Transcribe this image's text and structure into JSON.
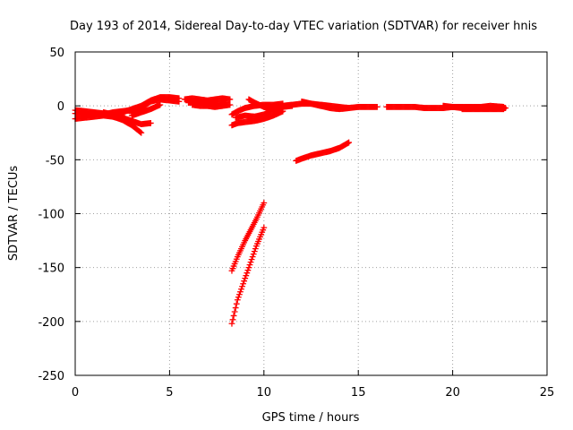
{
  "chart_data": {
    "type": "scatter",
    "title": "Day 193 of 2014, Sidereal Day-to-day VTEC variation (SDTVAR) for receiver hnis",
    "xlabel": "GPS time / hours",
    "ylabel": "SDTVAR / TECUs",
    "xlim": [
      0,
      25
    ],
    "ylim": [
      -250,
      50
    ],
    "xticks": [
      "0",
      "5",
      "10",
      "15",
      "20",
      "25"
    ],
    "yticks": [
      "50",
      "0",
      "-50",
      "-100",
      "-150",
      "-200",
      "-250"
    ],
    "xtick_values": [
      0,
      5,
      10,
      15,
      20,
      25
    ],
    "ytick_values": [
      50,
      0,
      -50,
      -100,
      -150,
      -200,
      -250
    ],
    "grid": true,
    "marker_color": "#ff0000",
    "series": [
      {
        "points": [
          [
            0,
            -12
          ],
          [
            0.5,
            -11
          ],
          [
            1,
            -10
          ],
          [
            1.5,
            -9
          ],
          [
            2,
            -10
          ],
          [
            2.5,
            -12
          ],
          [
            3,
            -14
          ]
        ]
      },
      {
        "points": [
          [
            0,
            -7
          ],
          [
            0.5,
            -8
          ],
          [
            1,
            -7
          ],
          [
            1.5,
            -8
          ],
          [
            2,
            -6
          ],
          [
            2.5,
            -5
          ],
          [
            3,
            -4
          ],
          [
            3.5,
            -3
          ]
        ]
      },
      {
        "points": [
          [
            0,
            -4
          ],
          [
            0.5,
            -5
          ],
          [
            1,
            -6
          ],
          [
            1.5,
            -7
          ],
          [
            2,
            -8
          ],
          [
            2.5,
            -9
          ]
        ]
      },
      {
        "points": [
          [
            1.5,
            -6
          ],
          [
            2,
            -8
          ],
          [
            2.5,
            -11
          ],
          [
            3,
            -14
          ],
          [
            3.5,
            -17
          ],
          [
            4,
            -16
          ]
        ]
      },
      {
        "points": [
          [
            2,
            -10
          ],
          [
            2.5,
            -13
          ],
          [
            3,
            -18
          ],
          [
            3.5,
            -25
          ]
        ]
      },
      {
        "points": [
          [
            2.5,
            -6
          ],
          [
            3,
            -3
          ],
          [
            3.5,
            0
          ],
          [
            4,
            5
          ],
          [
            4.5,
            8
          ],
          [
            5,
            8
          ],
          [
            5.5,
            7
          ]
        ]
      },
      {
        "points": [
          [
            3,
            -7
          ],
          [
            3.5,
            -2
          ],
          [
            4,
            4
          ],
          [
            4.5,
            6
          ],
          [
            5,
            5
          ],
          [
            5.5,
            4
          ]
        ]
      },
      {
        "points": [
          [
            3,
            -9
          ],
          [
            3.5,
            -6
          ],
          [
            4,
            -3
          ],
          [
            4.5,
            1
          ]
        ]
      },
      {
        "points": [
          [
            5.8,
            6
          ],
          [
            6.2,
            7
          ],
          [
            6.6,
            6
          ],
          [
            7,
            5
          ],
          [
            7.4,
            6
          ],
          [
            7.8,
            7
          ],
          [
            8.2,
            6
          ]
        ]
      },
      {
        "points": [
          [
            6,
            3
          ],
          [
            6.5,
            4
          ],
          [
            7,
            3
          ],
          [
            7.5,
            2
          ],
          [
            8,
            3
          ]
        ]
      },
      {
        "points": [
          [
            6.2,
            1
          ],
          [
            6.6,
            0
          ],
          [
            7,
            0
          ],
          [
            7.4,
            -1
          ],
          [
            7.8,
            0
          ],
          [
            8.2,
            1
          ]
        ]
      },
      {
        "points": [
          [
            8.3,
            -8
          ],
          [
            8.6,
            -5
          ],
          [
            9,
            -2
          ],
          [
            9.5,
            0
          ],
          [
            10,
            1
          ],
          [
            10.5,
            1
          ],
          [
            11,
            2
          ]
        ]
      },
      {
        "points": [
          [
            8.3,
            -18
          ],
          [
            8.6,
            -16
          ],
          [
            9,
            -15
          ],
          [
            9.5,
            -14
          ],
          [
            10,
            -12
          ],
          [
            10.5,
            -9
          ],
          [
            11,
            -5
          ]
        ]
      },
      {
        "points": [
          [
            8.5,
            -11
          ],
          [
            9,
            -9
          ],
          [
            9.5,
            -10
          ],
          [
            10,
            -8
          ],
          [
            10.5,
            -4
          ],
          [
            11,
            -2
          ]
        ]
      },
      {
        "points": [
          [
            9.2,
            6
          ],
          [
            9.5,
            3
          ],
          [
            10,
            -1
          ],
          [
            10.5,
            -3
          ],
          [
            11,
            -1
          ],
          [
            11.5,
            0
          ]
        ]
      },
      {
        "points": [
          [
            11,
            0
          ],
          [
            11.5,
            1
          ],
          [
            12,
            2
          ],
          [
            12.5,
            2
          ],
          [
            13,
            1
          ],
          [
            13.5,
            0
          ],
          [
            14,
            -1
          ],
          [
            14.5,
            -2
          ],
          [
            15,
            -1
          ],
          [
            15.5,
            -1
          ],
          [
            16,
            -1
          ]
        ]
      },
      {
        "points": [
          [
            12,
            4
          ],
          [
            12.5,
            2
          ],
          [
            13,
            0
          ],
          [
            13.5,
            -2
          ],
          [
            14,
            -3
          ],
          [
            14.5,
            -2
          ]
        ]
      },
      {
        "points": [
          [
            11.7,
            -51
          ],
          [
            12,
            -49
          ],
          [
            12.5,
            -46
          ],
          [
            13,
            -44
          ],
          [
            13.5,
            -42
          ],
          [
            14,
            -39
          ],
          [
            14.5,
            -34
          ]
        ]
      },
      {
        "points": [
          [
            8.3,
            -153
          ],
          [
            8.6,
            -140
          ],
          [
            9,
            -125
          ],
          [
            9.3,
            -115
          ],
          [
            9.6,
            -105
          ],
          [
            10,
            -90
          ]
        ]
      },
      {
        "points": [
          [
            8.3,
            -202
          ],
          [
            8.6,
            -180
          ],
          [
            9,
            -160
          ],
          [
            9.3,
            -145
          ],
          [
            9.6,
            -130
          ],
          [
            10,
            -113
          ]
        ]
      },
      {
        "points": [
          [
            16.5,
            -1
          ],
          [
            17,
            -1
          ],
          [
            17.5,
            -1
          ],
          [
            18,
            -1
          ],
          [
            18.5,
            -2
          ],
          [
            19,
            -2
          ],
          [
            19.5,
            -2
          ],
          [
            20,
            -1
          ],
          [
            20.5,
            -2
          ],
          [
            21,
            -2
          ],
          [
            21.5,
            -2
          ],
          [
            22,
            -2
          ],
          [
            22.5,
            -2
          ],
          [
            22.8,
            -2
          ]
        ]
      },
      {
        "points": [
          [
            19.5,
            0
          ],
          [
            20,
            -1
          ],
          [
            20.5,
            -1
          ],
          [
            21,
            -1
          ],
          [
            21.5,
            -1
          ],
          [
            22,
            0
          ],
          [
            22.7,
            -1
          ]
        ]
      },
      {
        "points": [
          [
            20.5,
            -3
          ],
          [
            21,
            -3
          ],
          [
            21.5,
            -3
          ],
          [
            22,
            -3
          ],
          [
            22.7,
            -3
          ]
        ]
      }
    ]
  }
}
